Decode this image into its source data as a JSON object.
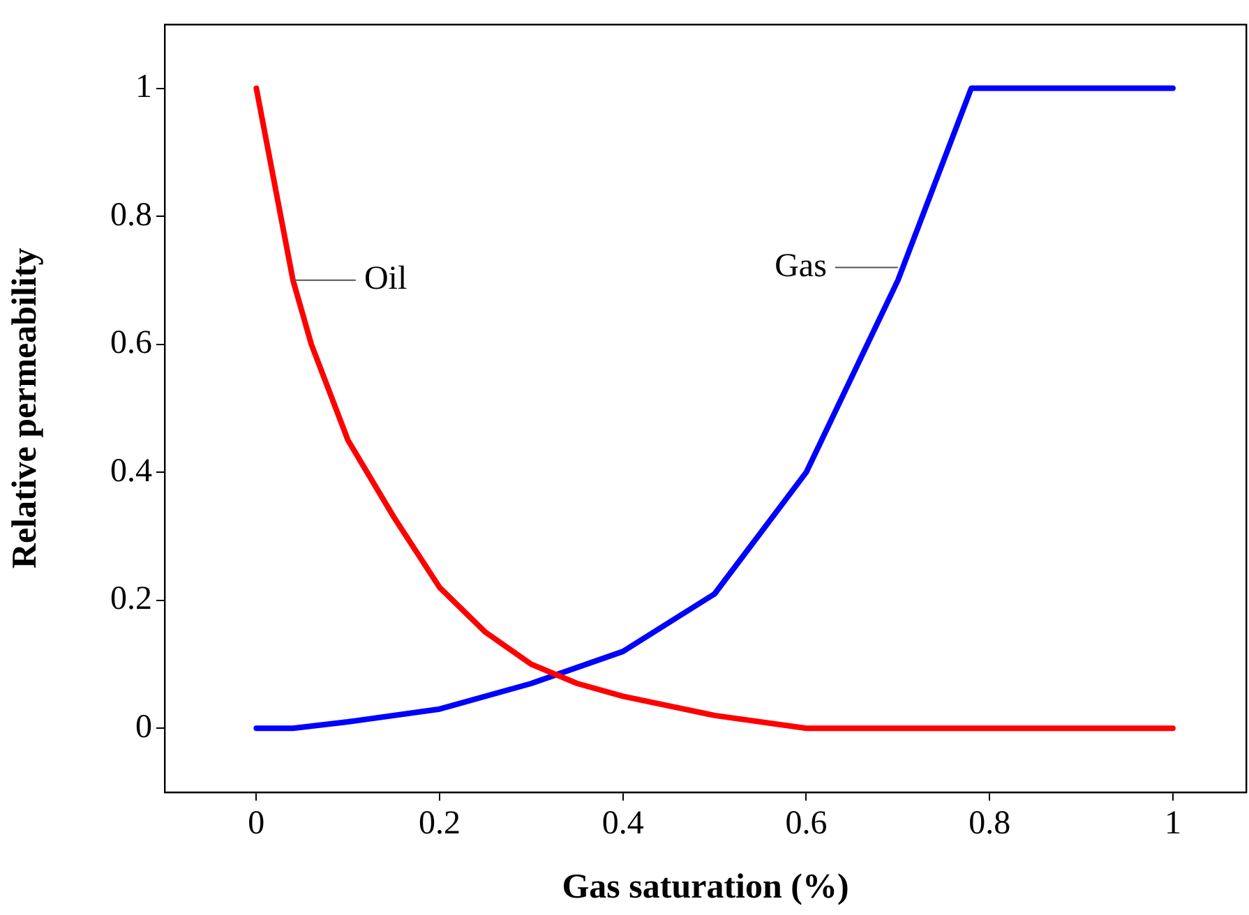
{
  "chart_data": {
    "type": "line",
    "xlabel": "Gas saturation (%)",
    "ylabel": "Relative permeability",
    "xlim": [
      -0.1,
      1.08
    ],
    "ylim": [
      -0.1,
      1.1
    ],
    "xticks": [
      0,
      0.2,
      0.4,
      0.6,
      0.8,
      1
    ],
    "yticks": [
      0,
      0.2,
      0.4,
      0.6,
      0.8,
      1
    ],
    "annotations": [
      {
        "text": "Oil",
        "x": 0.04,
        "y": 0.7
      },
      {
        "text": "Gas",
        "x": 0.7,
        "y": 0.72
      }
    ],
    "grid": false,
    "legend": false,
    "marker": "none",
    "line_style": "solid",
    "series": [
      {
        "color": "#ff0000",
        "x": [
          0,
          0.02,
          0.04,
          0.06,
          0.1,
          0.15,
          0.2,
          0.25,
          0.3,
          0.35,
          0.4,
          0.5,
          0.6,
          0.7,
          1
        ],
        "values": [
          1,
          0.85,
          0.7,
          0.6,
          0.45,
          0.33,
          0.22,
          0.15,
          0.1,
          0.07,
          0.05,
          0.02,
          0,
          0,
          0
        ]
      },
      {
        "color": "#0000ff",
        "x": [
          0,
          0.04,
          0.1,
          0.2,
          0.3,
          0.4,
          0.5,
          0.6,
          0.7,
          0.78,
          1
        ],
        "values": [
          0,
          0,
          0.01,
          0.03,
          0.07,
          0.12,
          0.21,
          0.4,
          0.7,
          1,
          1
        ]
      }
    ]
  }
}
